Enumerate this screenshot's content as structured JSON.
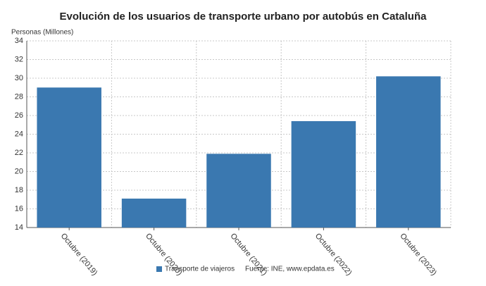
{
  "chart_data": {
    "type": "bar",
    "title": "Evolución de los usuarios de transporte urbano por autobús en Cataluña",
    "y_label": "Personas (Millones)",
    "categories": [
      "Octubre (2019)",
      "Octubre (2020)",
      "Octubre (2021)",
      "Octubre (2022)",
      "Octubre (2023)"
    ],
    "series": [
      {
        "name": "Transporte de viajeros",
        "color": "#3a78b0",
        "values": [
          29.0,
          17.1,
          21.9,
          25.4,
          30.2
        ]
      }
    ],
    "ylim": [
      14,
      34
    ],
    "yticks": [
      14,
      16,
      18,
      20,
      22,
      24,
      26,
      28,
      30,
      32,
      34
    ],
    "grid": true,
    "source": "Fuente: INE, www.epdata.es"
  }
}
